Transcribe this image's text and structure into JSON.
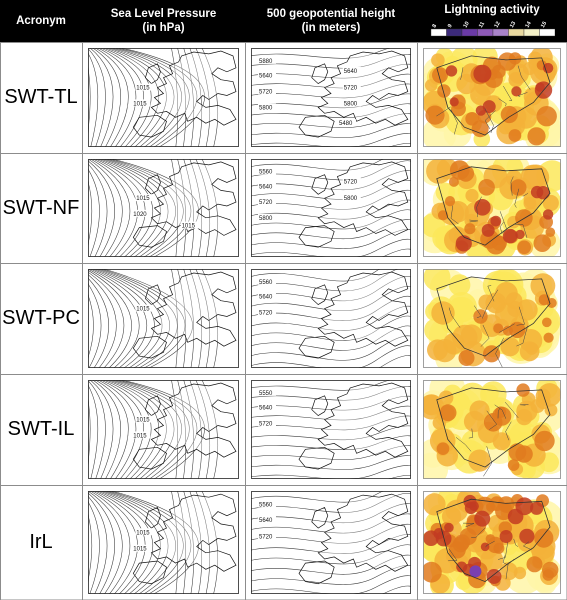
{
  "header": {
    "col_acronym": "Acronym",
    "col_slp_line1": "Sea Level Pressure",
    "col_slp_line2": "(in hPa)",
    "col_z500_line1": "500 geopotential height",
    "col_z500_line2": "(in meters)",
    "col_lightning": "Lightning activity"
  },
  "legend_ticks": [
    "8",
    "9",
    "10",
    "11",
    "12",
    "13",
    "14",
    "15"
  ],
  "colors": {
    "grid": "#8c8c8c",
    "header_bg": "#000000",
    "dark_purple": "#7a3fb0",
    "red": "#c23b22",
    "dark_orange": "#e07a1f",
    "orange": "#f3b23a",
    "yellow": "#fbe85b",
    "light_yellow": "#fff6a8"
  },
  "rows": [
    {
      "acronym": "SWT-TL",
      "slp_labels": [
        "1015",
        "1015"
      ],
      "z500_labels": [
        "5880",
        "5640",
        "5720",
        "5800",
        "5640",
        "5720",
        "5800",
        "5480"
      ],
      "lightning_intensity": "high"
    },
    {
      "acronym": "SWT-NF",
      "slp_labels": [
        "1015",
        "1020",
        "1015"
      ],
      "z500_labels": [
        "5560",
        "5640",
        "5720",
        "5800",
        "5720",
        "5800"
      ],
      "lightning_intensity": "high"
    },
    {
      "acronym": "SWT-PC",
      "slp_labels": [
        "1015"
      ],
      "z500_labels": [
        "5560",
        "5640",
        "5720"
      ],
      "lightning_intensity": "medium"
    },
    {
      "acronym": "SWT-IL",
      "slp_labels": [
        "1015",
        "1015"
      ],
      "z500_labels": [
        "5550",
        "5640",
        "5720"
      ],
      "lightning_intensity": "medium"
    },
    {
      "acronym": "IrL",
      "slp_labels": [
        "1015",
        "1015"
      ],
      "z500_labels": [
        "5560",
        "5640",
        "5720"
      ],
      "lightning_intensity": "very-high"
    }
  ]
}
